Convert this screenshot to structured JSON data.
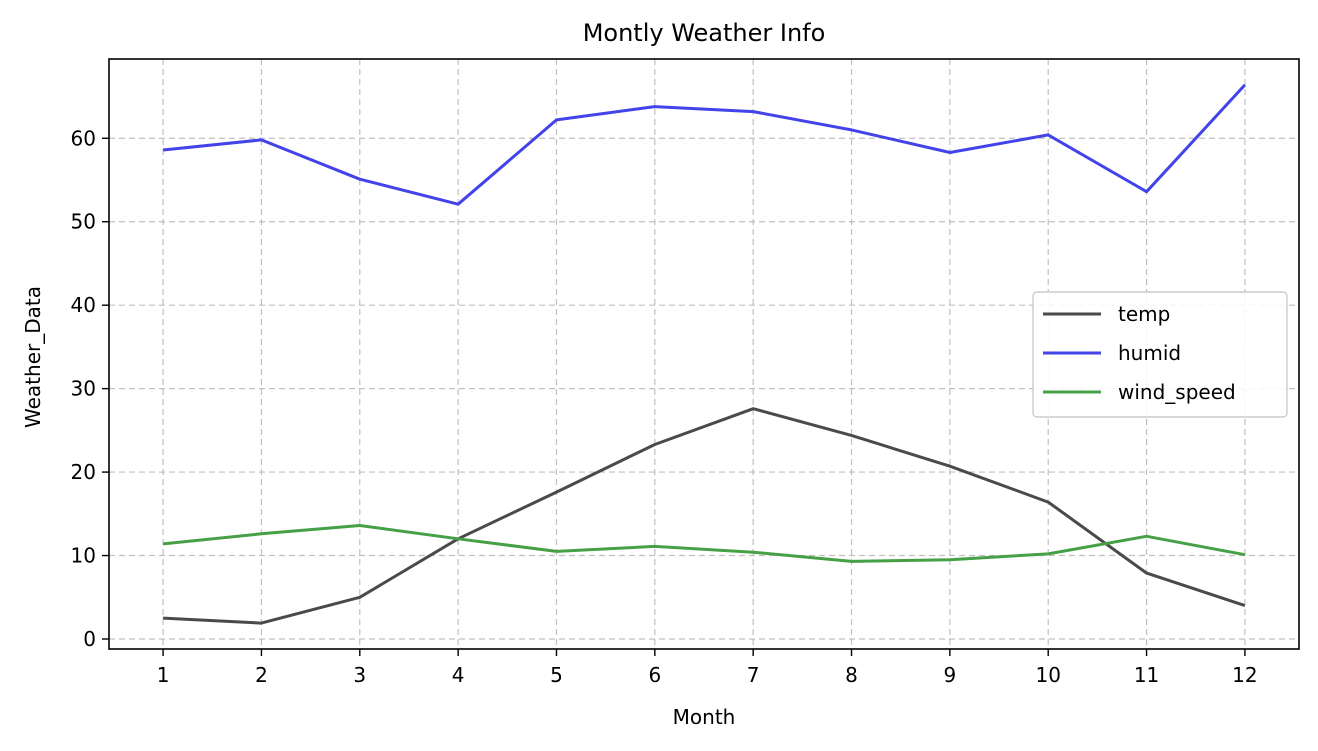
{
  "chart_data": {
    "type": "line",
    "title": "Montly Weather Info",
    "xlabel": "Month",
    "ylabel": "Weather_Data",
    "x": [
      1,
      2,
      3,
      4,
      5,
      6,
      7,
      8,
      9,
      10,
      11,
      12
    ],
    "x_tick_labels": [
      "1",
      "2",
      "3",
      "4",
      "5",
      "6",
      "7",
      "8",
      "9",
      "10",
      "11",
      "12"
    ],
    "y_ticks": [
      0,
      10,
      20,
      30,
      40,
      50,
      60
    ],
    "y_tick_labels": [
      "0",
      "10",
      "20",
      "30",
      "40",
      "50",
      "60"
    ],
    "xlim": [
      0.45,
      12.55
    ],
    "ylim": [
      -1.2,
      69.5
    ],
    "grid": true,
    "legend_position": "center-right",
    "series": [
      {
        "name": "temp",
        "color": "#4a4a4a",
        "values": [
          2.5,
          1.9,
          5.0,
          12.0,
          17.6,
          23.3,
          27.6,
          24.4,
          20.7,
          16.4,
          7.9,
          4.0
        ]
      },
      {
        "name": "humid",
        "color": "#4343ea",
        "values": [
          58.6,
          59.8,
          55.1,
          52.1,
          62.2,
          63.8,
          63.2,
          61.0,
          58.3,
          60.4,
          53.6,
          66.4
        ]
      },
      {
        "name": "wind_speed",
        "color": "#46a046",
        "values": [
          11.4,
          12.6,
          13.6,
          12.0,
          10.5,
          11.1,
          10.4,
          9.3,
          9.5,
          10.2,
          12.3,
          10.1
        ]
      }
    ]
  }
}
